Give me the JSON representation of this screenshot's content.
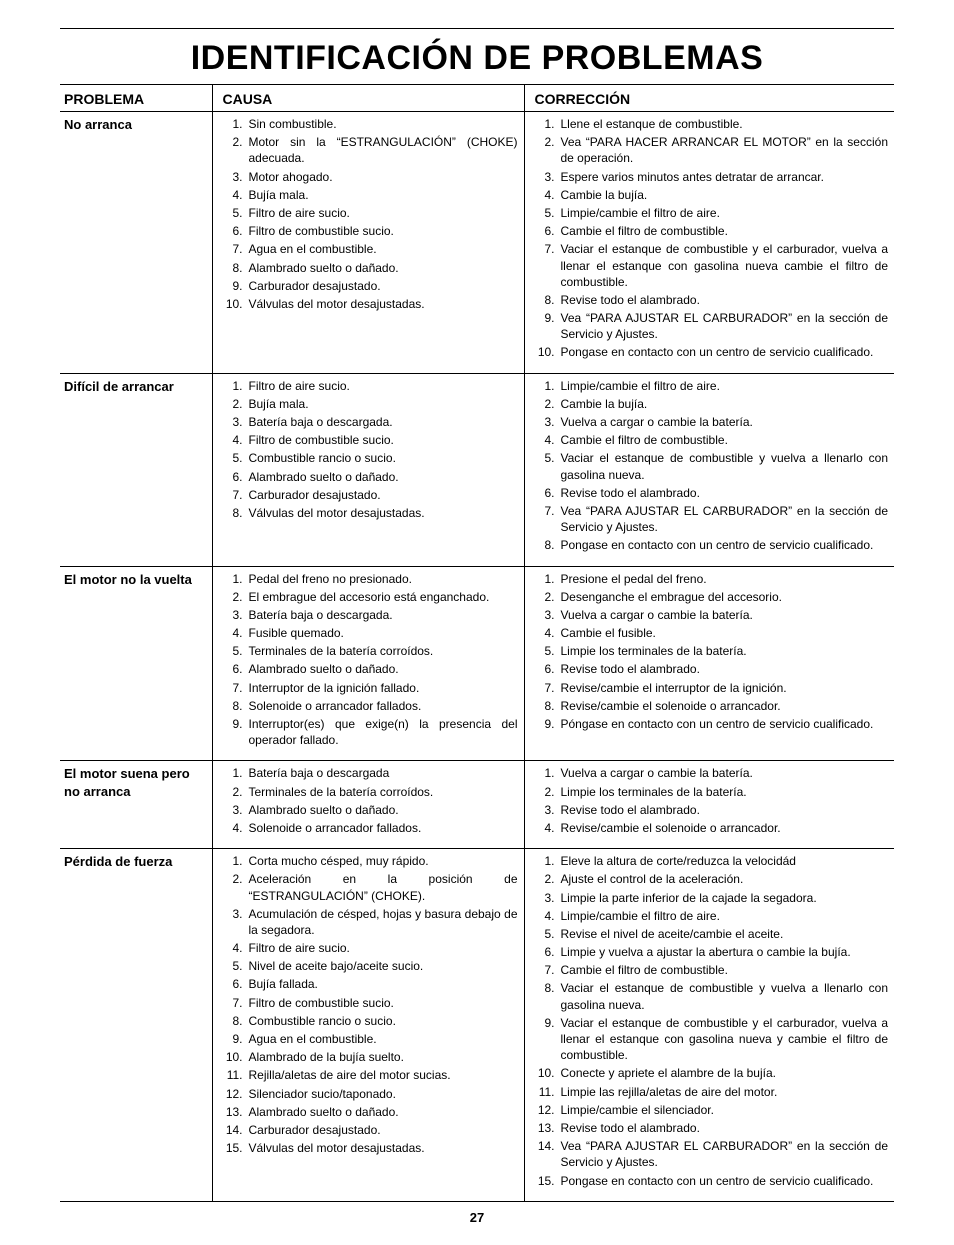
{
  "page": {
    "title": "IDENTIFICACIÓN DE PROBLEMAS",
    "page_number": "27",
    "columns": {
      "problem": "PROBLEMA",
      "cause": "CAUSA",
      "correction": "CORRECCIÓN"
    },
    "text_color": "#000000",
    "background_color": "#ffffff",
    "rule_color": "#000000",
    "body_font_size_pt": 9,
    "title_font_size_pt": 26
  },
  "rows": [
    {
      "problem": "No arranca",
      "causes": [
        "Sin combustible.",
        "Motor sin la “ESTRANGULACIÓN” (CHOKE) adecuada.",
        "Motor ahogado.",
        "Bujía mala.",
        "Filtro de aire sucio.",
        "Filtro de combustible sucio.",
        "Agua en el combustible.",
        "Alambrado suelto o dañado.",
        "Carburador desajustado.",
        "Válvulas del motor desajustadas."
      ],
      "corrections": [
        "Llene el estanque de combustible.",
        "Vea “PARA HACER ARRANCAR EL MOTOR” en la sección de operación.",
        "Espere varios minutos antes detratar de arrancar.",
        "Cambie la bujía.",
        "Limpie/cambie el filtro de aire.",
        "Cambie el filtro de combustible.",
        "Vaciar el estanque de combustible y el carburador, vuelva a llenar el estanque con gasolina nueva cambie el filtro de combustible.",
        "Revise todo el alambrado.",
        "Vea “PARA AJUSTAR EL CARBURADOR” en la sección de Servicio y Ajustes.",
        "Pongase en contacto con un centro de servicio cualificado."
      ]
    },
    {
      "problem": "Difícil de arrancar",
      "causes": [
        "Filtro de aire sucio.",
        "Bujía mala.",
        "Batería baja o descargada.",
        "Filtro de combustible sucio.",
        "Combustible rancio o sucio.",
        "Alambrado suelto o dañado.",
        "Carburador desajustado.",
        "Válvulas del motor desajustadas."
      ],
      "corrections": [
        "Limpie/cambie el filtro de aire.",
        "Cambie la bujía.",
        "Vuelva a cargar o cambie la batería.",
        "Cambie el filtro de combustible.",
        "Vaciar el estanque de combustible y vuelva a llenarlo con gasolina nueva.",
        "Revise todo el alambrado.",
        "Vea “PARA AJUSTAR EL CARBURADOR” en la sección de Servicio y Ajustes.",
        "Pongase en contacto con un centro de servicio cualificado."
      ]
    },
    {
      "problem": "El motor no la vuelta",
      "causes": [
        "Pedal del freno no presionado.",
        "El embrague del accesorio está enganchado.",
        "Batería baja o descargada.",
        "Fusible quemado.",
        "Terminales de la batería corroídos.",
        "Alambrado suelto o dañado.",
        "Interruptor de la ignición fallado.",
        "Solenoide o arrancador fallados.",
        "Interruptor(es) que exige(n) la presencia del operador fallado."
      ],
      "corrections": [
        "Presione el pedal del freno.",
        "Desenganche el embrague del accesorio.",
        "Vuelva a cargar o cambie la batería.",
        "Cambie el fusible.",
        "Limpie los terminales de la batería.",
        "Revise todo el alambrado.",
        "Revise/cambie el interruptor de la ignición.",
        "Revise/cambie el solenoide o arrancador.",
        "Póngase en contacto con un centro de servicio cualificado."
      ]
    },
    {
      "problem": "El motor suena pero no arranca",
      "causes": [
        "Batería baja o descargada",
        "Terminales de la batería corroídos.",
        "Alambrado suelto o dañado.",
        "Solenoide o arrancador fallados."
      ],
      "corrections": [
        "Vuelva a cargar o cambie la batería.",
        "Limpie los terminales de la batería.",
        "Revise todo el alambrado.",
        "Revise/cambie el solenoide o arrancador."
      ]
    },
    {
      "problem": "Pérdida de fuerza",
      "causes": [
        "Corta mucho césped, muy rápido.",
        "Aceleración en la posición de “ESTRANGULACIÓN” (CHOKE).",
        "Acumulación de césped, hojas y basura debajo de la segadora.",
        "Filtro de aire sucio.",
        "Nivel de aceite bajo/aceite sucio.",
        "Bujía fallada.",
        "Filtro de combustible sucio.",
        "Combustible rancio o sucio.",
        "Agua en el combustible.",
        "Alambrado de la bujía suelto.",
        "Rejilla/aletas de aire del motor sucias.",
        "Silenciador sucio/taponado.",
        "Alambrado suelto o dañado.",
        "Carburador desajustado.",
        "Válvulas del motor desajustadas."
      ],
      "corrections": [
        "Eleve la altura de corte/reduzca la velocidád",
        "Ajuste el control de la aceleración.",
        "Limpie la parte inferior de la cajade la segadora.",
        "Limpie/cambie el filtro de aire.",
        "Revise el nivel de aceite/cambie el aceite.",
        "Limpie y vuelva a ajustar la abertura o cambie la bujía.",
        "Cambie el filtro de combustible.",
        "Vaciar el estanque de combustible y vuelva a llenarlo con gasolina nueva.",
        "Vaciar el estanque de combustible y el carburador, vuelva a llenar el estanque con gasolina nueva y cambie el filtro de combustible.",
        "Conecte y apriete el alambre de la bujía.",
        "Limpie las rejilla/aletas de aire del motor.",
        "Limpie/cambie el silenciador.",
        "Revise todo el alambrado.",
        "Vea “PARA AJUSTAR EL CARBURADOR” en la sección de Servicio y Ajustes.",
        "Pongase en contacto con un centro de servicio cualificado."
      ]
    }
  ]
}
